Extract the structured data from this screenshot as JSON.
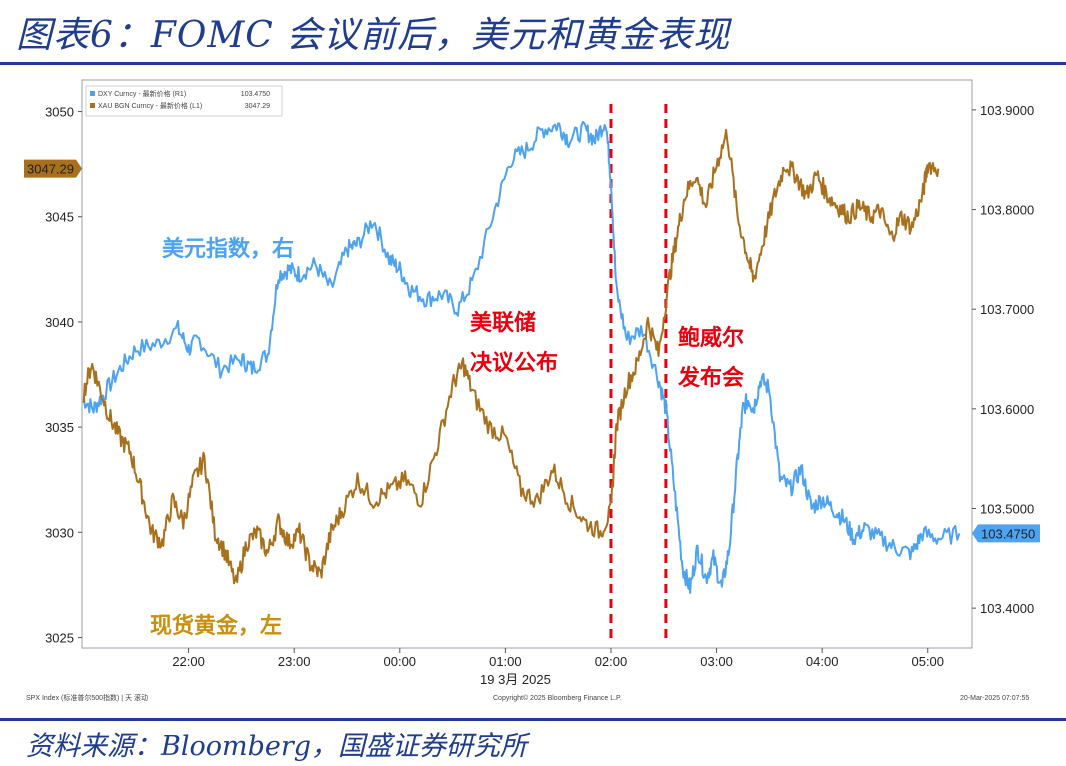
{
  "title": "图表6：FOMC 会议前后，美元和黄金表现",
  "source": "资料来源：Bloomberg，国盛证券研究所",
  "colors": {
    "dxy": "#4da3f0",
    "gold": "#a8701c",
    "brand": "#1f3d8f",
    "marker": "#e8000f"
  },
  "legend": [
    {
      "label": "DXY Curncy - 最新价格 (R1)",
      "value": "103.4750"
    },
    {
      "label": "XAU BGN Curncy - 最新价格 (L1)",
      "value": "3047.29"
    }
  ],
  "annotations": {
    "dxy": "美元指数，右",
    "gold": "现货黄金，左",
    "fed1": "美联储",
    "fed2": "决议公布",
    "powell1": "鲍威尔",
    "powell2": "发布会"
  },
  "footer": {
    "left": "SPX Index (标准普尔500指数) | 天  滚动",
    "center": "Copyright© 2025 Bloomberg Finance L.P.",
    "right": "20-Mar-2025 07:07:55",
    "date": "19 3月 2025"
  },
  "chart_data": {
    "type": "line",
    "x_ticks": [
      "22:00",
      "23:00",
      "00:00",
      "01:00",
      "02:00",
      "03:00",
      "04:00",
      "05:00"
    ],
    "y_left_ticks": [
      "3025",
      "3030",
      "3035",
      "3040",
      "3045",
      "3050"
    ],
    "y_right_ticks": [
      "103.4000",
      "103.5000",
      "103.6000",
      "103.7000",
      "103.8000",
      "103.9000"
    ],
    "ylim_left": [
      3024.5,
      3051.5
    ],
    "ylim_right": [
      103.36,
      103.93
    ],
    "xlim": [
      21.0,
      29.4
    ],
    "current_left_label": "3047.29",
    "current_right_label": "103.4750",
    "vertical_markers": [
      26.0,
      26.52
    ],
    "series": [
      {
        "name": "DXY Curncy",
        "axis": "right",
        "x": [
          21.0,
          21.1,
          21.2,
          21.35,
          21.5,
          21.7,
          21.9,
          22.0,
          22.1,
          22.3,
          22.5,
          22.6,
          22.75,
          22.85,
          22.95,
          23.05,
          23.2,
          23.35,
          23.5,
          23.6,
          23.75,
          23.9,
          24.0,
          24.1,
          24.25,
          24.4,
          24.55,
          24.7,
          24.9,
          25.05,
          25.2,
          25.35,
          25.5,
          25.6,
          25.75,
          25.85,
          25.95,
          26.0,
          26.05,
          26.15,
          26.3,
          26.45,
          26.52,
          26.6,
          26.68,
          26.75,
          26.82,
          26.9,
          26.97,
          27.05,
          27.12,
          27.2,
          27.25,
          27.3,
          27.35,
          27.42,
          27.5,
          27.6,
          27.7,
          27.8,
          27.9,
          28.0,
          28.1,
          28.2,
          28.3,
          28.4,
          28.55,
          28.7,
          28.85,
          28.95,
          29.1,
          29.3
        ],
        "values": [
          103.61,
          103.6,
          103.615,
          103.64,
          103.66,
          103.665,
          103.68,
          103.66,
          103.67,
          103.64,
          103.65,
          103.64,
          103.655,
          103.735,
          103.74,
          103.735,
          103.745,
          103.72,
          103.76,
          103.765,
          103.79,
          103.75,
          103.74,
          103.72,
          103.71,
          103.715,
          103.7,
          103.73,
          103.8,
          103.85,
          103.86,
          103.88,
          103.885,
          103.87,
          103.88,
          103.87,
          103.89,
          103.83,
          103.72,
          103.67,
          103.68,
          103.63,
          103.6,
          103.52,
          103.44,
          103.42,
          103.46,
          103.43,
          103.45,
          103.42,
          103.46,
          103.55,
          103.6,
          103.61,
          103.6,
          103.63,
          103.62,
          103.53,
          103.52,
          103.54,
          103.5,
          103.51,
          103.5,
          103.49,
          103.47,
          103.48,
          103.47,
          103.46,
          103.455,
          103.475,
          103.47,
          103.475
        ]
      },
      {
        "name": "XAU BGN Curncy",
        "axis": "left",
        "x": [
          21.0,
          21.08,
          21.15,
          21.25,
          21.35,
          21.45,
          21.55,
          21.65,
          21.75,
          21.85,
          21.95,
          22.05,
          22.15,
          22.25,
          22.35,
          22.45,
          22.55,
          22.65,
          22.75,
          22.85,
          22.95,
          23.05,
          23.15,
          23.25,
          23.35,
          23.45,
          23.6,
          23.75,
          23.9,
          24.05,
          24.2,
          24.35,
          24.5,
          24.6,
          24.7,
          24.85,
          25.0,
          25.15,
          25.3,
          25.45,
          25.6,
          25.75,
          25.9,
          26.0,
          26.05,
          26.15,
          26.25,
          26.35,
          26.45,
          26.55,
          26.62,
          26.7,
          26.8,
          26.9,
          27.0,
          27.1,
          27.2,
          27.3,
          27.35,
          27.45,
          27.55,
          27.65,
          27.75,
          27.85,
          27.95,
          28.05,
          28.15,
          28.25,
          28.35,
          28.45,
          28.55,
          28.65,
          28.75,
          28.85,
          28.95,
          29.0,
          29.1
        ],
        "values": [
          3036.5,
          3038.0,
          3037.0,
          3035.5,
          3034.5,
          3033.8,
          3032.0,
          3030.0,
          3029.5,
          3031.5,
          3030.5,
          3032.5,
          3033.5,
          3030.0,
          3029.0,
          3027.5,
          3029.5,
          3030.0,
          3029.0,
          3030.5,
          3029.5,
          3030.0,
          3028.5,
          3028.0,
          3030.0,
          3031.0,
          3032.5,
          3031.5,
          3032.0,
          3032.5,
          3031.5,
          3034.0,
          3037.0,
          3038.0,
          3036.5,
          3035.0,
          3034.5,
          3032.0,
          3031.5,
          3033.0,
          3031.5,
          3030.5,
          3030.0,
          3031.0,
          3035.0,
          3037.0,
          3038.0,
          3040.0,
          3038.5,
          3042.0,
          3044.0,
          3046.0,
          3047.0,
          3045.5,
          3047.5,
          3049.0,
          3045.0,
          3043.0,
          3042.0,
          3044.0,
          3046.0,
          3047.5,
          3047.0,
          3046.0,
          3047.0,
          3046.0,
          3045.5,
          3045.0,
          3045.5,
          3045.0,
          3045.3,
          3044.0,
          3045.0,
          3044.5,
          3046.0,
          3047.5,
          3047.29
        ]
      }
    ]
  }
}
